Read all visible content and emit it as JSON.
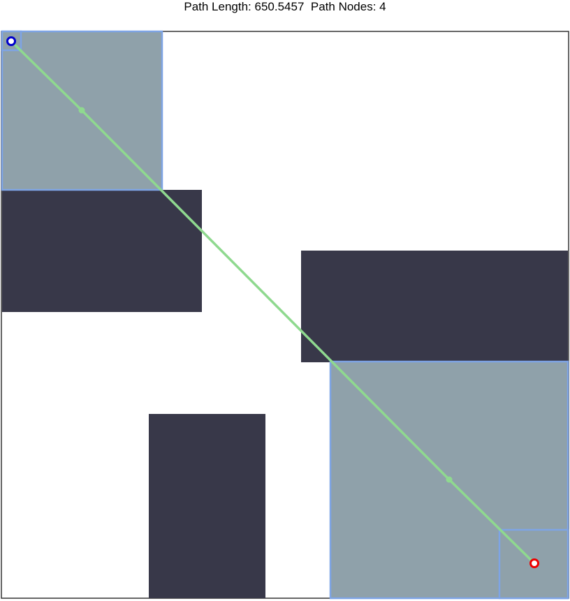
{
  "header": {
    "path_length_label": "Path Length:",
    "path_length_value": "650.5457",
    "path_nodes_label": "Path Nodes:",
    "path_nodes_value": "4"
  },
  "colors": {
    "obstacle": "#383849",
    "explored_fill": "#8fa1aa",
    "explored_stroke": "#7ea4e5",
    "path": "#8fd98f",
    "path_node": "#8fd98f",
    "start_marker": "#0000cc",
    "goal_marker": "#ee0000",
    "border": "#333333",
    "background": "#ffffff"
  },
  "icons": {
    "start": "start-node-circle-icon",
    "goal": "goal-node-circle-icon"
  }
}
